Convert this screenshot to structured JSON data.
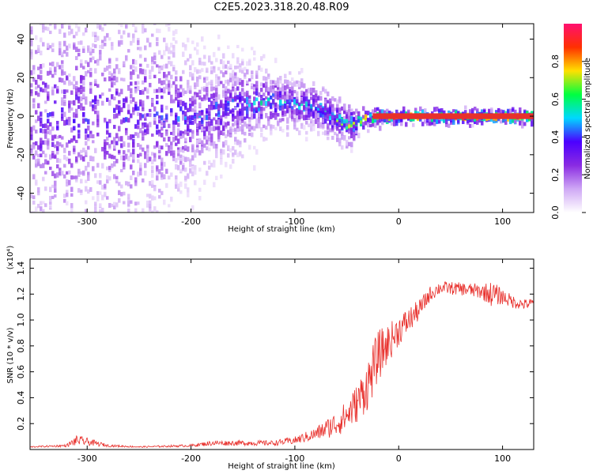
{
  "title": "C2E5.2023.318.20.48.R09",
  "colors": {
    "snr_line": "#e8302c",
    "core_band": "#e8302c"
  },
  "chart_data": [
    {
      "type": "heatmap",
      "title": "C2E5.2023.318.20.48.R09",
      "xlabel": "Height of straight line (km)",
      "ylabel": "Frequency (Hz)",
      "xlim": [
        -355,
        130
      ],
      "ylim": [
        -50,
        48
      ],
      "x_ticks": [
        {
          "value": -300,
          "label": "-300"
        },
        {
          "value": -200,
          "label": "-200"
        },
        {
          "value": -100,
          "label": "-100"
        },
        {
          "value": 0,
          "label": "0"
        },
        {
          "value": 100,
          "label": "100"
        }
      ],
      "y_ticks": [
        {
          "value": 40,
          "label": "40"
        },
        {
          "value": 20,
          "label": "20"
        },
        {
          "value": 0,
          "label": "0"
        },
        {
          "value": -20,
          "label": "-20"
        },
        {
          "value": -40,
          "label": "-40"
        }
      ],
      "colorbar": {
        "label": "Normalized spectral amplitude",
        "range": [
          0,
          1
        ],
        "ticks": [
          {
            "value": 0.0,
            "label": "0.0"
          },
          {
            "value": 0.2,
            "label": "0.2"
          },
          {
            "value": 0.4,
            "label": "0.4"
          },
          {
            "value": 0.6,
            "label": "0.6"
          },
          {
            "value": 0.8,
            "label": "0.8"
          }
        ],
        "stops": [
          "#ffffff",
          "#cfa8f5",
          "#8a2be2",
          "#4b00ff",
          "#00d8ff",
          "#00ff40",
          "#ffe000",
          "#ff3000",
          "#ff1070"
        ]
      },
      "trend": [
        {
          "x": -355,
          "y": 0,
          "spread": 45,
          "amp": 0.35
        },
        {
          "x": -250,
          "y": 0,
          "spread": 40,
          "amp": 0.35
        },
        {
          "x": -200,
          "y": 0,
          "spread": 18,
          "amp": 0.4
        },
        {
          "x": -160,
          "y": 6,
          "spread": 14,
          "amp": 0.45
        },
        {
          "x": -120,
          "y": 8,
          "spread": 8,
          "amp": 0.5
        },
        {
          "x": -80,
          "y": 5,
          "spread": 6,
          "amp": 0.55
        },
        {
          "x": -50,
          "y": -5,
          "spread": 6,
          "amp": 0.6
        },
        {
          "x": -30,
          "y": 0,
          "spread": 3,
          "amp": 0.8
        },
        {
          "x": 0,
          "y": 0,
          "spread": 2,
          "amp": 0.95
        },
        {
          "x": 130,
          "y": 0,
          "spread": 2,
          "amp": 0.95
        }
      ]
    },
    {
      "type": "line",
      "xlabel": "Height of straight line (km)",
      "ylabel": "SNR (10 * v/v)",
      "scale_label": "(x10⁴)",
      "xlim": [
        -355,
        130
      ],
      "ylim": [
        0,
        1.47
      ],
      "x_ticks": [
        {
          "value": -300,
          "label": "-300"
        },
        {
          "value": -200,
          "label": "-200"
        },
        {
          "value": -100,
          "label": "-100"
        },
        {
          "value": 0,
          "label": "0"
        },
        {
          "value": 100,
          "label": "100"
        }
      ],
      "y_ticks": [
        {
          "value": 0.2,
          "label": "0.2"
        },
        {
          "value": 0.4,
          "label": "0.4"
        },
        {
          "value": 0.6,
          "label": "0.6"
        },
        {
          "value": 0.8,
          "label": "0.8"
        },
        {
          "value": 1.0,
          "label": "1.0"
        },
        {
          "value": 1.2,
          "label": "1.2"
        },
        {
          "value": 1.4,
          "label": "1.4"
        }
      ],
      "x": [
        -355,
        -320,
        -310,
        -300,
        -280,
        -250,
        -200,
        -180,
        -150,
        -120,
        -100,
        -80,
        -60,
        -50,
        -40,
        -30,
        -20,
        -10,
        0,
        10,
        20,
        30,
        40,
        60,
        80,
        90,
        100,
        110,
        120,
        130
      ],
      "values": [
        0.02,
        0.03,
        0.07,
        0.06,
        0.03,
        0.02,
        0.03,
        0.05,
        0.05,
        0.05,
        0.07,
        0.12,
        0.2,
        0.26,
        0.36,
        0.5,
        0.72,
        0.82,
        0.92,
        1.0,
        1.08,
        1.2,
        1.25,
        1.24,
        1.22,
        1.2,
        1.18,
        1.14,
        1.12,
        1.13
      ],
      "noise": [
        0.005,
        0.01,
        0.04,
        0.03,
        0.01,
        0.005,
        0.01,
        0.02,
        0.02,
        0.02,
        0.03,
        0.05,
        0.1,
        0.12,
        0.15,
        0.2,
        0.2,
        0.15,
        0.12,
        0.1,
        0.08,
        0.06,
        0.05,
        0.05,
        0.06,
        0.1,
        0.06,
        0.05,
        0.04,
        0.04
      ]
    }
  ]
}
